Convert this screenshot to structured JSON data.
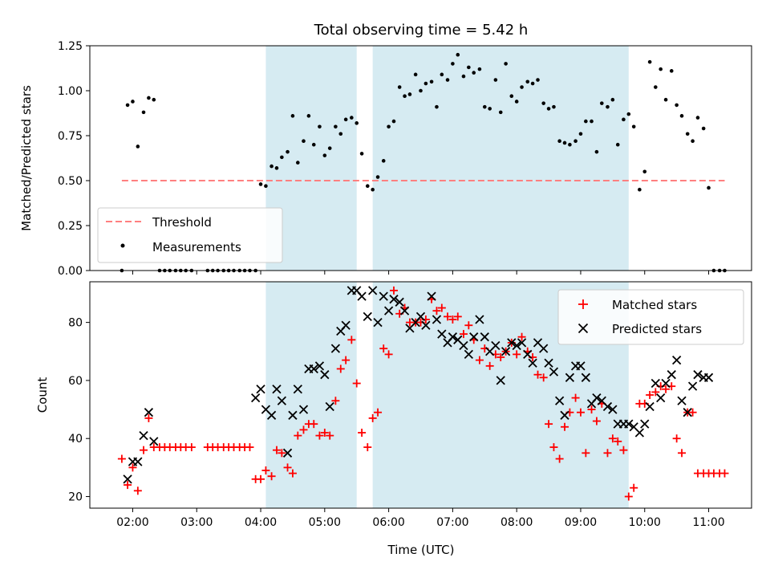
{
  "chart_data": {
    "type": "scatter",
    "title": "Total observing time = 5.42 h",
    "xlabel": "Time (UTC)",
    "x_ticks": [
      "02:00",
      "03:00",
      "04:00",
      "05:00",
      "06:00",
      "07:00",
      "08:00",
      "09:00",
      "10:00",
      "11:00"
    ],
    "xlim": [
      1.33,
      11.67
    ],
    "shaded_intervals": [
      [
        4.08,
        5.5
      ],
      [
        5.75,
        9.75
      ]
    ],
    "colors": {
      "shade": "#add8e6",
      "threshold": "#ff8080",
      "measurement": "#000000",
      "matched": "#ff0000",
      "predicted": "#000000"
    },
    "top": {
      "ylabel": "Matched/Predicted stars",
      "ylim": [
        0,
        1.25
      ],
      "y_ticks": [
        "0.00",
        "0.25",
        "0.50",
        "0.75",
        "1.00",
        "1.25"
      ],
      "threshold": {
        "name": "Threshold",
        "value": 0.5,
        "x_range": [
          1.83,
          11.25
        ]
      },
      "measurements": {
        "name": "Measurements",
        "x": [
          1.83,
          1.92,
          2.0,
          2.08,
          2.17,
          2.25,
          2.33,
          2.42,
          2.5,
          2.58,
          2.67,
          2.75,
          2.83,
          2.92,
          3.17,
          3.25,
          3.33,
          3.42,
          3.5,
          3.58,
          3.67,
          3.75,
          3.83,
          3.92,
          4.0,
          4.08,
          4.17,
          4.25,
          4.33,
          4.42,
          4.5,
          4.58,
          4.67,
          4.75,
          4.83,
          4.92,
          5.0,
          5.08,
          5.17,
          5.25,
          5.33,
          5.42,
          5.5,
          5.58,
          5.67,
          5.75,
          5.83,
          5.92,
          6.0,
          6.08,
          6.17,
          6.25,
          6.33,
          6.42,
          6.5,
          6.58,
          6.67,
          6.75,
          6.83,
          6.92,
          7.0,
          7.08,
          7.17,
          7.25,
          7.33,
          7.42,
          7.5,
          7.58,
          7.67,
          7.75,
          7.83,
          7.92,
          8.0,
          8.08,
          8.17,
          8.25,
          8.33,
          8.42,
          8.5,
          8.58,
          8.67,
          8.75,
          8.83,
          8.92,
          9.0,
          9.08,
          9.17,
          9.25,
          9.33,
          9.42,
          9.5,
          9.58,
          9.67,
          9.75,
          9.83,
          9.92,
          10.0,
          10.08,
          10.17,
          10.25,
          10.33,
          10.42,
          10.5,
          10.58,
          10.67,
          10.75,
          10.83,
          10.92,
          11.0,
          11.08,
          11.17,
          11.25
        ],
        "y": [
          0.0,
          0.92,
          0.94,
          0.69,
          0.88,
          0.96,
          0.95,
          0.0,
          0.0,
          0.0,
          0.0,
          0.0,
          0.0,
          0.0,
          0.0,
          0.0,
          0.0,
          0.0,
          0.0,
          0.0,
          0.0,
          0.0,
          0.0,
          0.0,
          0.48,
          0.47,
          0.58,
          0.57,
          0.63,
          0.66,
          0.86,
          0.6,
          0.72,
          0.86,
          0.7,
          0.8,
          0.64,
          0.68,
          0.8,
          0.76,
          0.84,
          0.85,
          0.82,
          0.65,
          0.47,
          0.45,
          0.52,
          0.61,
          0.8,
          0.83,
          1.02,
          0.97,
          0.98,
          1.09,
          1.0,
          1.04,
          1.05,
          0.91,
          1.09,
          1.06,
          1.15,
          1.2,
          1.08,
          1.13,
          1.1,
          1.12,
          0.91,
          0.9,
          1.06,
          0.88,
          1.15,
          0.97,
          0.94,
          1.02,
          1.05,
          1.04,
          1.06,
          0.93,
          0.9,
          0.91,
          0.72,
          0.71,
          0.7,
          0.72,
          0.76,
          0.83,
          0.83,
          0.66,
          0.93,
          0.91,
          0.95,
          0.7,
          0.84,
          0.87,
          0.8,
          0.45,
          0.55,
          1.16,
          1.02,
          1.12,
          0.95,
          1.11,
          0.92,
          0.86,
          0.76,
          0.72,
          0.85,
          0.79,
          0.46,
          0.0,
          0.0,
          0.0
        ]
      }
    },
    "bottom": {
      "ylabel": "Count",
      "ylim": [
        16,
        94
      ],
      "y_ticks": [
        "20",
        "40",
        "60",
        "80"
      ],
      "matched": {
        "name": "Matched stars",
        "x": [
          1.83,
          1.92,
          2.0,
          2.08,
          2.17,
          2.25,
          2.33,
          2.42,
          2.5,
          2.58,
          2.67,
          2.75,
          2.83,
          2.92,
          3.17,
          3.25,
          3.33,
          3.42,
          3.5,
          3.58,
          3.67,
          3.75,
          3.83,
          3.92,
          4.0,
          4.08,
          4.17,
          4.25,
          4.33,
          4.42,
          4.5,
          4.58,
          4.67,
          4.75,
          4.83,
          4.92,
          5.0,
          5.08,
          5.17,
          5.25,
          5.33,
          5.42,
          5.5,
          5.58,
          5.67,
          5.75,
          5.83,
          5.92,
          6.0,
          6.08,
          6.17,
          6.25,
          6.33,
          6.42,
          6.5,
          6.58,
          6.67,
          6.75,
          6.83,
          6.92,
          7.0,
          7.08,
          7.17,
          7.25,
          7.33,
          7.42,
          7.5,
          7.58,
          7.67,
          7.75,
          7.83,
          7.92,
          8.0,
          8.08,
          8.17,
          8.25,
          8.33,
          8.42,
          8.5,
          8.58,
          8.67,
          8.75,
          8.83,
          8.92,
          9.0,
          9.08,
          9.17,
          9.25,
          9.33,
          9.42,
          9.5,
          9.58,
          9.67,
          9.75,
          9.83,
          9.92,
          10.0,
          10.08,
          10.17,
          10.25,
          10.33,
          10.42,
          10.5,
          10.58,
          10.67,
          10.75,
          10.83,
          10.92,
          11.0,
          11.08,
          11.17,
          11.25
        ],
        "y": [
          33,
          24,
          30,
          22,
          36,
          47,
          37,
          37,
          37,
          37,
          37,
          37,
          37,
          37,
          37,
          37,
          37,
          37,
          37,
          37,
          37,
          37,
          37,
          26,
          26,
          29,
          27,
          36,
          35,
          30,
          28,
          41,
          43,
          45,
          45,
          41,
          42,
          41,
          53,
          64,
          67,
          74,
          59,
          42,
          37,
          47,
          49,
          71,
          69,
          91,
          83,
          85,
          80,
          80,
          80,
          81,
          88,
          84,
          85,
          82,
          81,
          82,
          76,
          79,
          74,
          67,
          71,
          65,
          69,
          68,
          70,
          73,
          69,
          75,
          70,
          68,
          62,
          61,
          45,
          37,
          33,
          44,
          49,
          54,
          49,
          35,
          50,
          46,
          52,
          35,
          40,
          39,
          36,
          20,
          23,
          52,
          52,
          55,
          56,
          58,
          57,
          58,
          40,
          35,
          49,
          49,
          28,
          28,
          28,
          28,
          28,
          28
        ]
      },
      "predicted": {
        "name": "Predicted stars",
        "x": [
          1.92,
          2.0,
          2.08,
          2.17,
          2.25,
          2.33,
          3.92,
          4.0,
          4.08,
          4.17,
          4.25,
          4.33,
          4.42,
          4.5,
          4.58,
          4.67,
          4.75,
          4.83,
          4.92,
          5.0,
          5.08,
          5.17,
          5.25,
          5.33,
          5.42,
          5.5,
          5.58,
          5.67,
          5.75,
          5.83,
          5.92,
          6.0,
          6.08,
          6.17,
          6.25,
          6.33,
          6.42,
          6.5,
          6.58,
          6.67,
          6.75,
          6.83,
          6.92,
          7.0,
          7.08,
          7.17,
          7.25,
          7.33,
          7.42,
          7.5,
          7.58,
          7.67,
          7.75,
          7.83,
          7.92,
          8.0,
          8.08,
          8.17,
          8.25,
          8.33,
          8.42,
          8.5,
          8.58,
          8.67,
          8.75,
          8.83,
          8.92,
          9.0,
          9.08,
          9.17,
          9.25,
          9.33,
          9.42,
          9.5,
          9.58,
          9.67,
          9.75,
          9.83,
          9.92,
          10.0,
          10.08,
          10.17,
          10.25,
          10.33,
          10.42,
          10.5,
          10.58,
          10.67,
          10.75,
          10.83,
          10.92,
          11.0
        ],
        "y": [
          26,
          32,
          32,
          41,
          49,
          39,
          54,
          57,
          50,
          48,
          57,
          53,
          35,
          48,
          57,
          50,
          64,
          64,
          65,
          62,
          51,
          71,
          77,
          79,
          91,
          91,
          89,
          82,
          91,
          80,
          89,
          84,
          88,
          87,
          84,
          78,
          80,
          82,
          79,
          89,
          81,
          76,
          73,
          75,
          74,
          72,
          69,
          75,
          81,
          75,
          70,
          72,
          60,
          70,
          73,
          72,
          73,
          69,
          66,
          73,
          71,
          66,
          63,
          53,
          48,
          61,
          65,
          65,
          61,
          52,
          54,
          53,
          51,
          50,
          45,
          45,
          45,
          44,
          42,
          45,
          51,
          59,
          54,
          59,
          62,
          67,
          53,
          49,
          58,
          62,
          61,
          61
        ]
      }
    }
  }
}
